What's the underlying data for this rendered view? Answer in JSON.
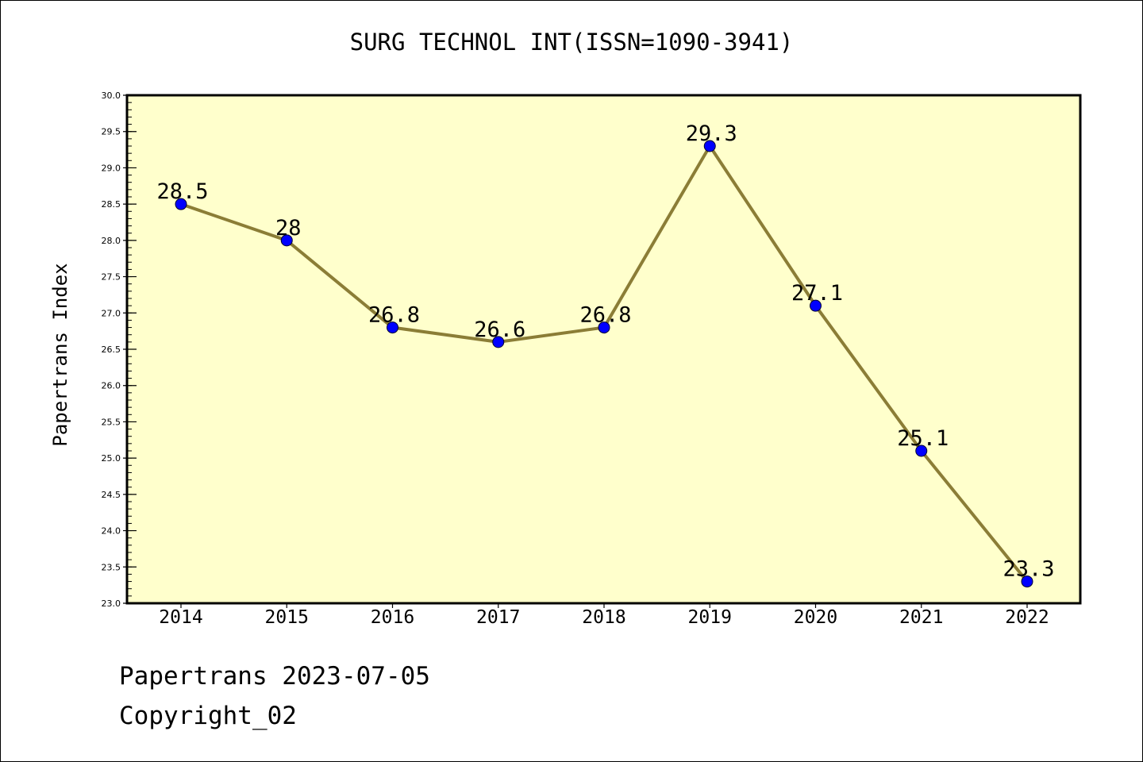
{
  "chart_data": {
    "type": "line",
    "title": "SURG TECHNOL INT(ISSN=1090-3941)",
    "ylabel": "Papertrans Index",
    "xlabel": "",
    "categories": [
      "2014",
      "2015",
      "2016",
      "2017",
      "2018",
      "2019",
      "2020",
      "2021",
      "2022"
    ],
    "series": [
      {
        "values": [
          28.5,
          28.0,
          26.8,
          26.6,
          26.8,
          29.3,
          27.1,
          25.1,
          23.3
        ],
        "data_labels": [
          "28.5",
          "28",
          "26.8",
          "26.6",
          "26.8",
          "29.3",
          "27.1",
          "25.1",
          "23.3"
        ]
      }
    ],
    "ylim": [
      23.0,
      30.0
    ],
    "yticks": [
      "23.0",
      "23.5",
      "24.0",
      "24.5",
      "25.0",
      "25.5",
      "26.0",
      "26.5",
      "27.0",
      "27.5",
      "28.0",
      "28.5",
      "29.0",
      "29.5",
      "30.0"
    ],
    "grid": false,
    "legend": "none"
  },
  "colors": {
    "plot_background": "#ffffcc",
    "line": "#8b7d36",
    "marker": "#0000ff"
  },
  "footer": {
    "date_line": "Papertrans 2023-07-05",
    "copyright_line": "Copyright_02"
  }
}
